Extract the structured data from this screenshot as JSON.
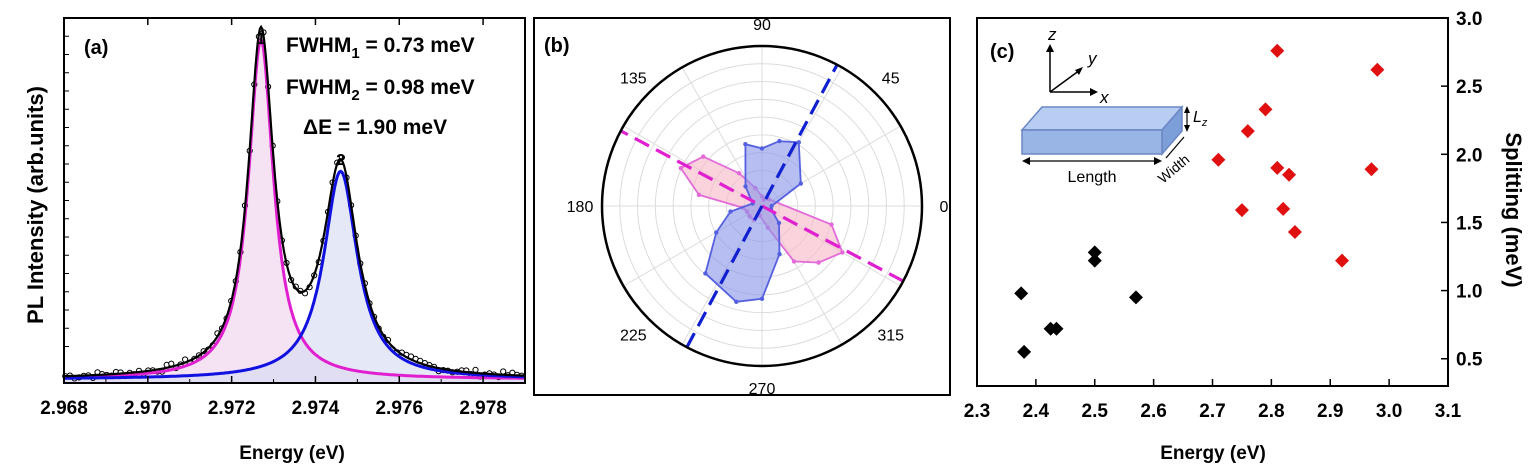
{
  "chart_data": [
    {
      "panel_label": "(a)",
      "type": "line",
      "xlabel": "Energy (eV)",
      "ylabel": "PL Intensity (arb.units)",
      "xlim": [
        2.968,
        2.979
      ],
      "ylim": [
        0,
        1.0
      ],
      "x_ticks": [
        "2.968",
        "2.970",
        "2.972",
        "2.974",
        "2.976",
        "2.978"
      ],
      "annotations": {
        "fwhm1_label": "FWHM",
        "fwhm1_sub": "1",
        "fwhm1_value": " = 0.73 meV",
        "fwhm2_label": "FWHM",
        "fwhm2_sub": "2",
        "fwhm2_value": " = 0.98 meV",
        "delta_e": "ΔE = 1.90 meV",
        "peak1_label": "1",
        "peak2_label": "2"
      },
      "series": [
        {
          "role": "peak-1",
          "center": 2.9727,
          "fwhm_meV": 0.73,
          "amplitude": 0.93,
          "color": "#e020d0"
        },
        {
          "role": "peak-2",
          "center": 2.9746,
          "fwhm_meV": 0.98,
          "amplitude": 0.57,
          "color": "#1010e0"
        },
        {
          "role": "fit-sum",
          "color": "#000000"
        },
        {
          "role": "data-points",
          "marker": "open-circle",
          "color": "#000000"
        }
      ],
      "baseline": 0.01
    },
    {
      "panel_label": "(b)",
      "type": "polar",
      "angle_labels": [
        "0",
        "45",
        "90",
        "135",
        "180",
        "225",
        "270",
        "315"
      ],
      "series": [
        {
          "color": "#e36ad8",
          "fill": "#f7b8c8",
          "angles": [
            345,
            330,
            315,
            300,
            285,
            255,
            240,
            220,
            200,
            185,
            170,
            155,
            140,
            125,
            110,
            90,
            75,
            45
          ],
          "r": [
            0.45,
            0.58,
            0.5,
            0.4,
            0.14,
            0.06,
            0.1,
            0.1,
            0.1,
            0.12,
            0.4,
            0.56,
            0.48,
            0.25,
            0.12,
            0.06,
            0.04,
            0.06
          ]
        },
        {
          "color": "#5560e0",
          "fill": "#8a96ea",
          "angles": [
            0,
            30,
            60,
            75,
            90,
            105,
            130,
            165,
            190,
            210,
            230,
            255,
            270,
            290,
            315,
            340
          ],
          "r": [
            0.06,
            0.28,
            0.46,
            0.42,
            0.36,
            0.4,
            0.16,
            0.06,
            0.2,
            0.33,
            0.55,
            0.62,
            0.58,
            0.32,
            0.15,
            0.06
          ]
        }
      ],
      "axes_lines": [
        {
          "angle": 152,
          "color": "#e020d0"
        },
        {
          "angle": 62,
          "color": "#1020d0"
        }
      ]
    },
    {
      "panel_label": "(c)",
      "type": "scatter",
      "xlabel": "Energy (eV)",
      "ylabel": "Splitting (meV)",
      "xlim": [
        2.3,
        3.1
      ],
      "ylim": [
        0.3,
        3.0
      ],
      "x_ticks": [
        "2.3",
        "2.4",
        "2.5",
        "2.6",
        "2.7",
        "2.8",
        "2.9",
        "3.0",
        "3.1"
      ],
      "y_ticks": [
        "0.5",
        "1.0",
        "1.5",
        "2.0",
        "2.5",
        "3.0"
      ],
      "y_axis_side": "right",
      "series": [
        {
          "color": "#000000",
          "marker": "diamond",
          "points": [
            [
              2.375,
              0.98
            ],
            [
              2.38,
              0.55
            ],
            [
              2.425,
              0.72
            ],
            [
              2.435,
              0.72
            ],
            [
              2.5,
              1.28
            ],
            [
              2.5,
              1.22
            ],
            [
              2.57,
              0.95
            ]
          ]
        },
        {
          "color": "#e01010",
          "marker": "diamond",
          "points": [
            [
              2.81,
              2.76
            ],
            [
              2.98,
              2.62
            ],
            [
              2.79,
              2.33
            ],
            [
              2.76,
              2.17
            ],
            [
              2.71,
              1.96
            ],
            [
              2.81,
              1.9
            ],
            [
              2.83,
              1.85
            ],
            [
              2.97,
              1.89
            ],
            [
              2.75,
              1.59
            ],
            [
              2.82,
              1.6
            ],
            [
              2.84,
              1.43
            ],
            [
              2.92,
              1.22
            ]
          ]
        }
      ],
      "inset": {
        "axis_z": "z",
        "axis_y": "y",
        "axis_x": "x",
        "length_label": "Length",
        "width_label": "Width",
        "lz_label": "L",
        "lz_sub": "z"
      }
    }
  ]
}
